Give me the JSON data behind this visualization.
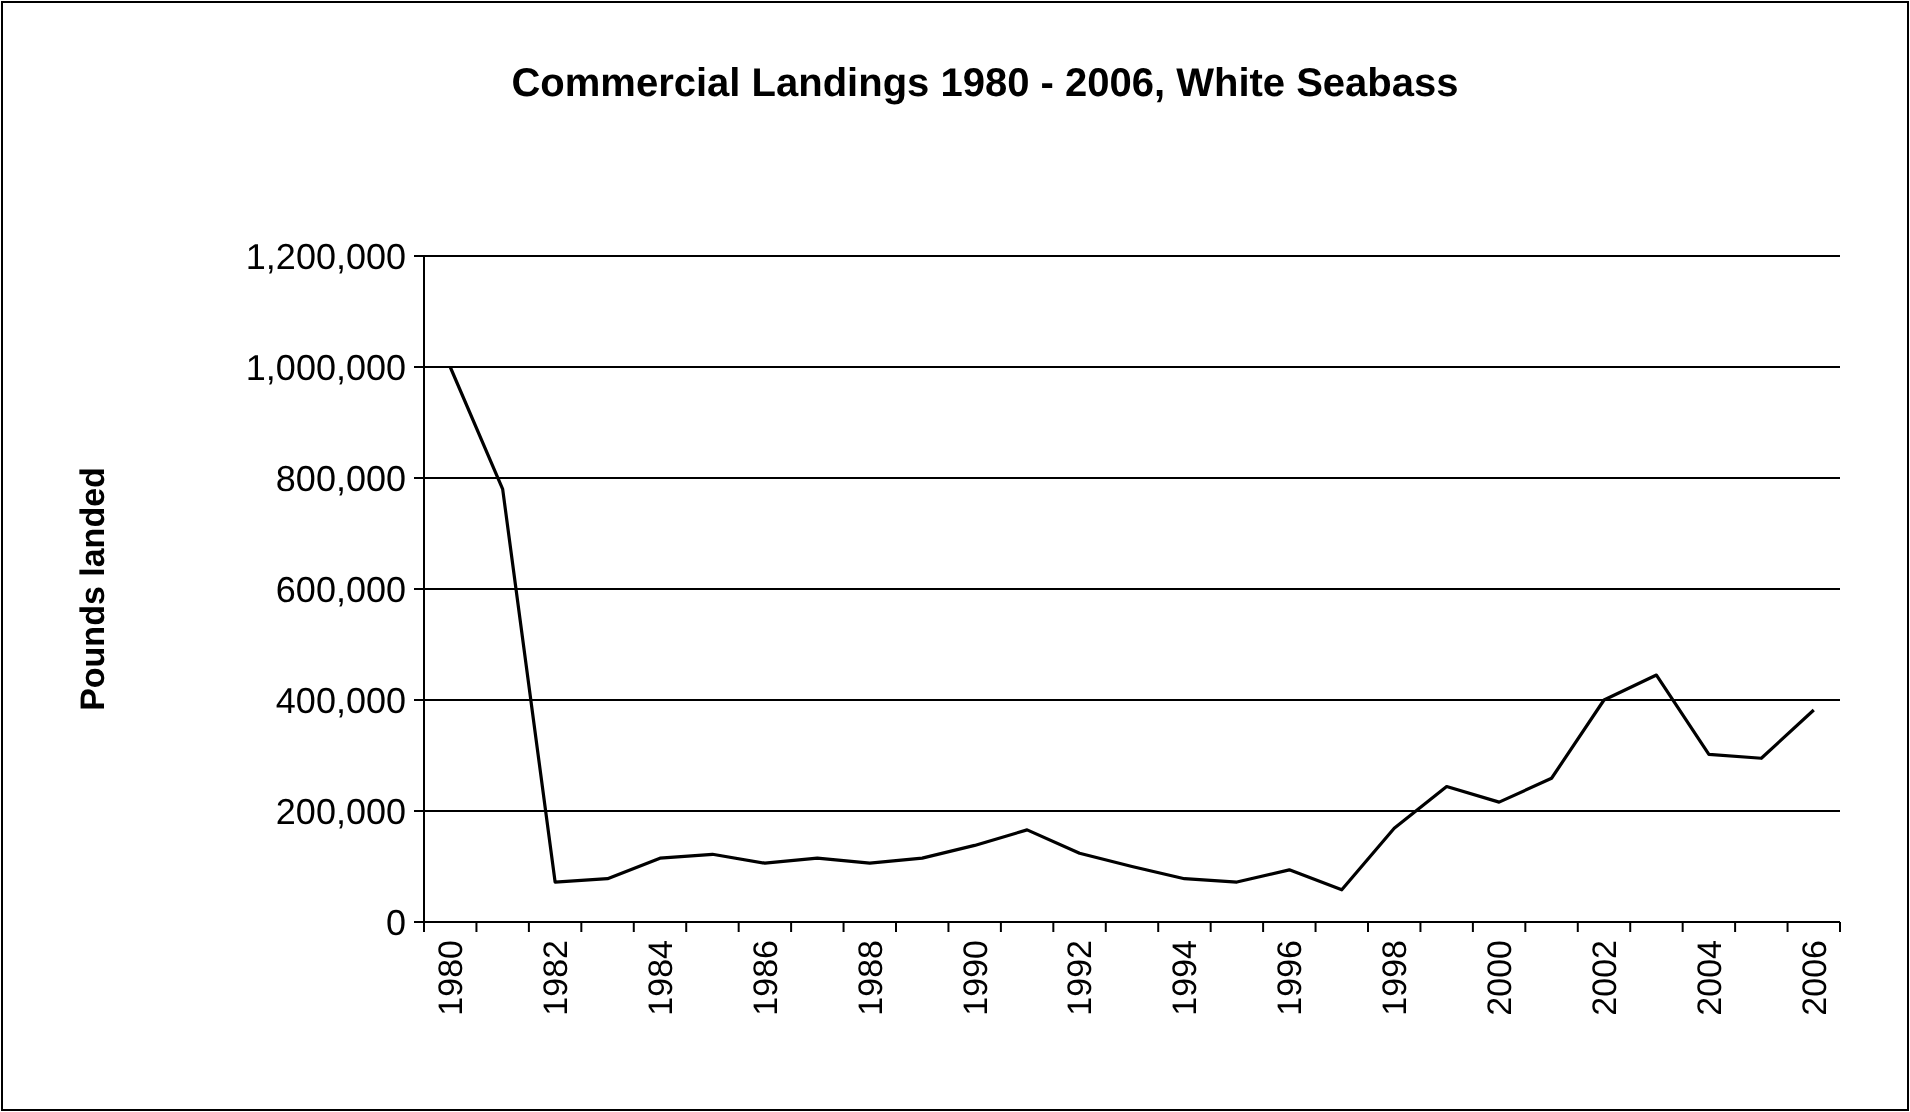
{
  "chart_data": {
    "type": "line",
    "title": "Commercial Landings 1980 - 2006, White Seabass",
    "ylabel": "Pounds landed",
    "categories": [
      "1980",
      null,
      "1982",
      null,
      "1984",
      null,
      "1986",
      null,
      "1988",
      null,
      "1990",
      null,
      "1992",
      null,
      "1994",
      null,
      "1996",
      null,
      "1998",
      null,
      "2000",
      null,
      "2002",
      null,
      "2004",
      null,
      "2006"
    ],
    "series": [
      {
        "color": "#000000",
        "values": [
          1000000,
          780000,
          72000,
          78000,
          115000,
          122000,
          106000,
          115000,
          106000,
          115000,
          138000,
          166000,
          124000,
          100000,
          78000,
          72000,
          94000,
          58000,
          169000,
          244000,
          216000,
          259000,
          400000,
          445000,
          302000,
          295000,
          382000
        ]
      }
    ],
    "ylim": [
      0,
      1200000
    ],
    "yticks": [
      {
        "value": 0,
        "label": "0"
      },
      {
        "value": 200000,
        "label": "200,000"
      },
      {
        "value": 400000,
        "label": "400,000"
      },
      {
        "value": 600000,
        "label": "600,000"
      },
      {
        "value": 800000,
        "label": "800,000"
      },
      {
        "value": 1000000,
        "label": "1,000,000"
      },
      {
        "value": 1200000,
        "label": "1,200,000"
      }
    ],
    "grid": "y",
    "marker": "none",
    "line_style": "solid"
  }
}
